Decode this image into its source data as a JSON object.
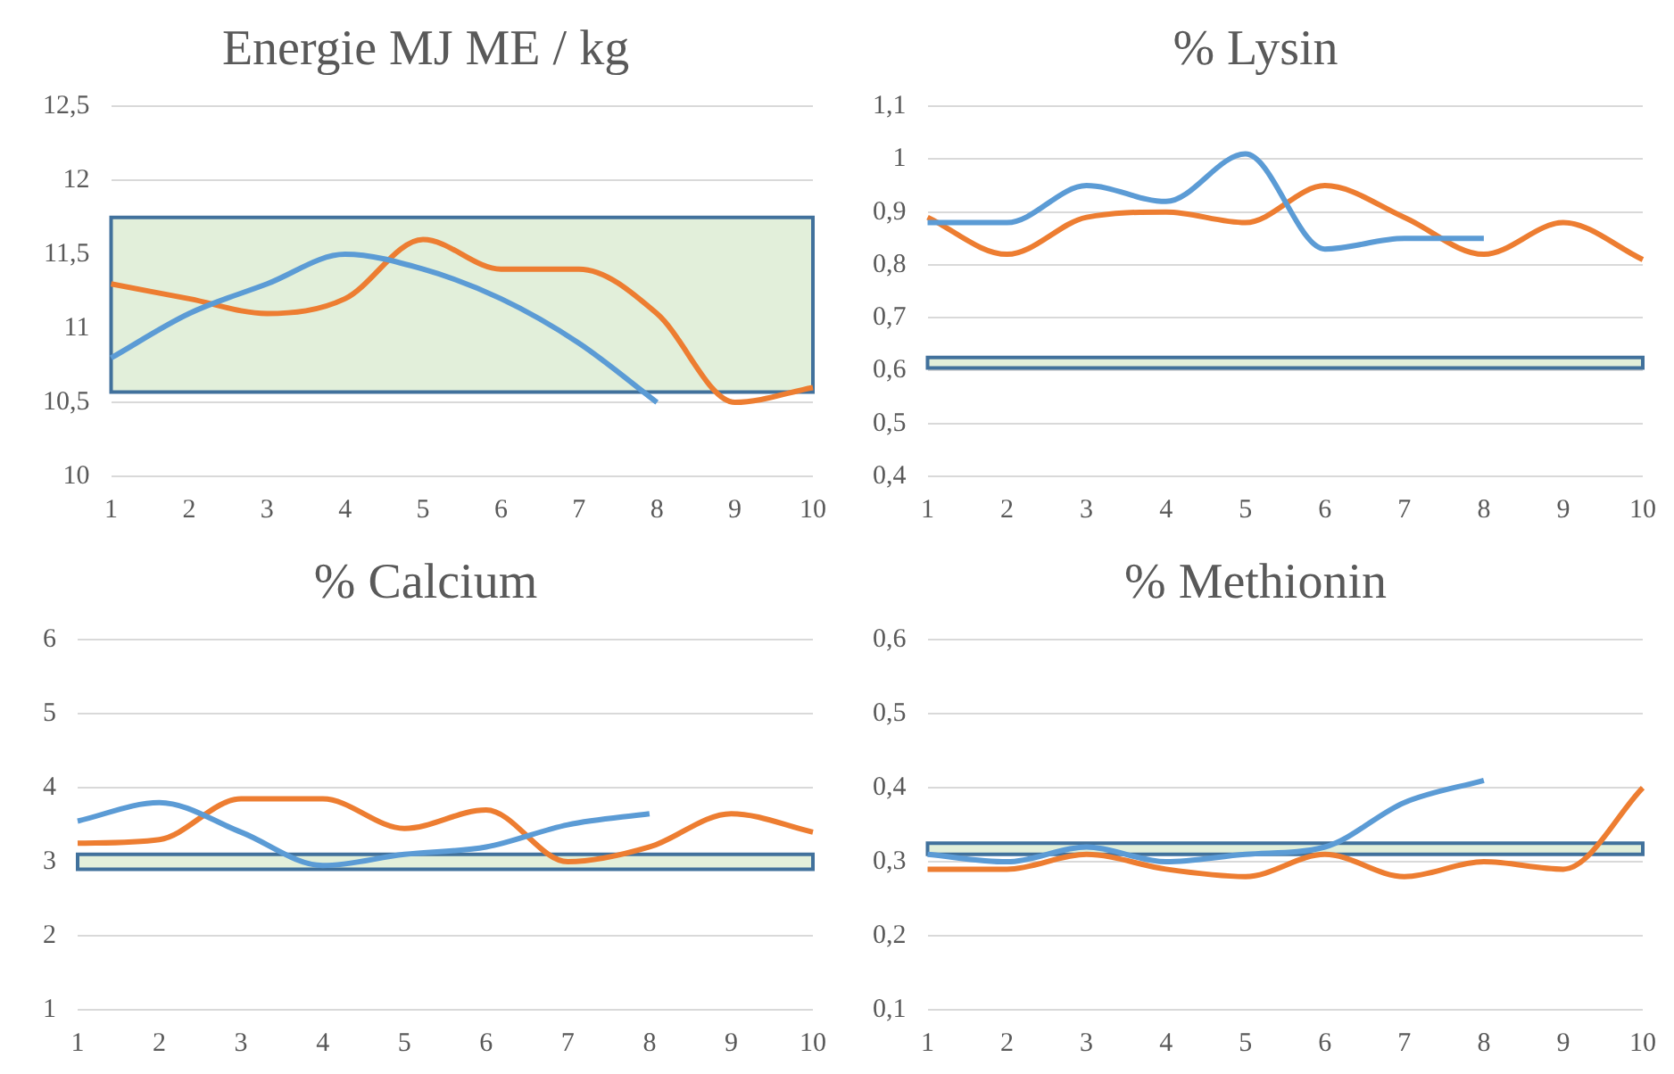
{
  "chart_data": [
    {
      "type": "line",
      "title": "Energie MJ ME / kg",
      "categories": [
        "1",
        "2",
        "3",
        "4",
        "5",
        "6",
        "7",
        "8",
        "9",
        "10"
      ],
      "series": [
        {
          "color": "#5b9bd5",
          "values": [
            10.8,
            11.1,
            11.3,
            11.5,
            11.4,
            11.2,
            10.9,
            10.5,
            null,
            null
          ]
        },
        {
          "color": "#ed7d31",
          "values": [
            11.3,
            11.2,
            11.1,
            11.2,
            11.6,
            11.4,
            11.4,
            11.1,
            10.5,
            10.6
          ]
        }
      ],
      "ylim": [
        10,
        12.5
      ],
      "yticks": [
        10,
        {
          "value": 10.5,
          "label": "10,5"
        },
        11,
        {
          "value": 11.5,
          "label": "11,5"
        },
        12,
        {
          "value": 12.5,
          "label": "12,5"
        }
      ],
      "bands": [
        {
          "axis": "y",
          "from": 10.57,
          "to": 11.75,
          "color": "#e2efda"
        }
      ],
      "grid": "y",
      "legend": false
    },
    {
      "type": "line",
      "title": "% Lysin",
      "categories": [
        "1",
        "2",
        "3",
        "4",
        "5",
        "6",
        "7",
        "8",
        "9",
        "10"
      ],
      "series": [
        {
          "color": "#5b9bd5",
          "values": [
            0.88,
            0.88,
            0.95,
            0.92,
            1.01,
            0.83,
            0.85,
            0.85,
            null,
            null
          ]
        },
        {
          "color": "#ed7d31",
          "values": [
            0.89,
            0.82,
            0.89,
            0.9,
            0.88,
            0.95,
            0.89,
            0.82,
            0.88,
            0.81
          ]
        }
      ],
      "ylim": [
        0.4,
        1.1
      ],
      "yticks": [
        {
          "value": 0.4,
          "label": "0,4"
        },
        {
          "value": 0.5,
          "label": "0,5"
        },
        {
          "value": 0.6,
          "label": "0,6"
        },
        {
          "value": 0.7,
          "label": "0,7"
        },
        {
          "value": 0.8,
          "label": "0,8"
        },
        {
          "value": 0.9,
          "label": "0,9"
        },
        1,
        {
          "value": 1.1,
          "label": "1,1"
        }
      ],
      "bands": [
        {
          "axis": "y",
          "from": 0.605,
          "to": 0.625,
          "color": "#e2efda"
        }
      ],
      "grid": "y",
      "legend": false
    },
    {
      "type": "line",
      "title": "% Calcium",
      "categories": [
        "1",
        "2",
        "3",
        "4",
        "5",
        "6",
        "7",
        "8",
        "9",
        "10"
      ],
      "series": [
        {
          "color": "#5b9bd5",
          "values": [
            3.55,
            3.8,
            3.4,
            2.95,
            3.1,
            3.2,
            3.5,
            3.65,
            null,
            null
          ]
        },
        {
          "color": "#ed7d31",
          "values": [
            3.25,
            3.3,
            3.85,
            3.85,
            3.45,
            3.7,
            3.0,
            3.2,
            3.65,
            3.4
          ]
        }
      ],
      "ylim": [
        1,
        6
      ],
      "yticks": [
        1,
        2,
        3,
        4,
        5,
        6
      ],
      "bands": [
        {
          "axis": "y",
          "from": 2.9,
          "to": 3.1,
          "color": "#e2efda"
        }
      ],
      "grid": "y",
      "legend": false
    },
    {
      "type": "line",
      "title": "% Methionin",
      "categories": [
        "1",
        "2",
        "3",
        "4",
        "5",
        "6",
        "7",
        "8",
        "9",
        "10"
      ],
      "series": [
        {
          "color": "#5b9bd5",
          "values": [
            0.31,
            0.3,
            0.32,
            0.3,
            0.31,
            0.32,
            0.38,
            0.41,
            null,
            null
          ]
        },
        {
          "color": "#ed7d31",
          "values": [
            0.29,
            0.29,
            0.31,
            0.29,
            0.28,
            0.31,
            0.28,
            0.3,
            0.29,
            0.4
          ]
        }
      ],
      "ylim": [
        0.1,
        0.6
      ],
      "yticks": [
        {
          "value": 0.1,
          "label": "0,1"
        },
        {
          "value": 0.2,
          "label": "0,2"
        },
        {
          "value": 0.3,
          "label": "0,3"
        },
        {
          "value": 0.4,
          "label": "0,4"
        },
        {
          "value": 0.5,
          "label": "0,5"
        },
        {
          "value": 0.6,
          "label": "0,6"
        }
      ],
      "bands": [
        {
          "axis": "y",
          "from": 0.31,
          "to": 0.325,
          "color": "#e2efda"
        }
      ],
      "grid": "y",
      "legend": false
    }
  ]
}
